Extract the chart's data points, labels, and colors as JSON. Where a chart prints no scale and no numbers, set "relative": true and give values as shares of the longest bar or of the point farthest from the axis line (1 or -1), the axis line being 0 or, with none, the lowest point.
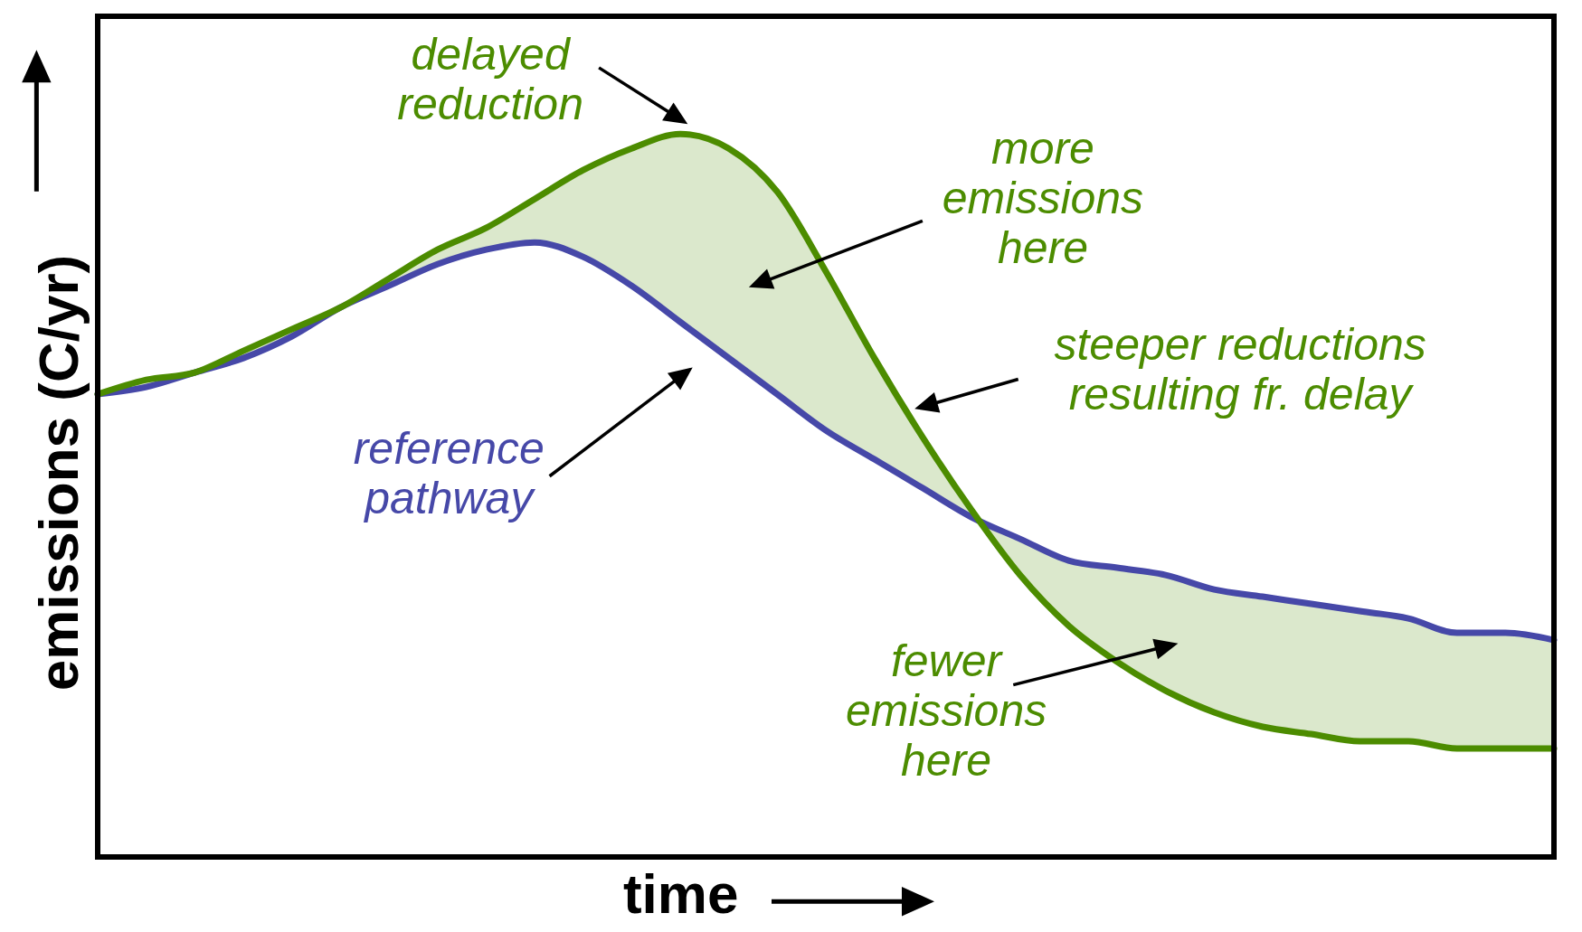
{
  "chart_data": {
    "type": "line",
    "relative": true,
    "xlabel": "time",
    "ylabel": "emissions (C/yr)",
    "grid": false,
    "legend": false,
    "marker": "none",
    "line_style": "solid",
    "categories": [
      null,
      null,
      null,
      null,
      null,
      null,
      null,
      null,
      null,
      null,
      null,
      null,
      null,
      null,
      null,
      null,
      null,
      null,
      null,
      null,
      null,
      null,
      null,
      null,
      null,
      null,
      null,
      null,
      null,
      null,
      null
    ],
    "series": [
      {
        "color": "#4648a8",
        "values": [
          0.64,
          0.65,
          0.67,
          0.69,
          0.72,
          0.76,
          0.79,
          0.82,
          0.84,
          0.85,
          0.83,
          0.79,
          0.74,
          0.69,
          0.64,
          0.59,
          0.55,
          0.51,
          0.47,
          0.44,
          0.41,
          0.4,
          0.39,
          0.37,
          0.36,
          0.35,
          0.34,
          0.33,
          0.31,
          0.31,
          0.3
        ]
      },
      {
        "color": "#4c8c00",
        "values": [
          0.64,
          0.66,
          0.67,
          0.7,
          0.73,
          0.76,
          0.8,
          0.84,
          0.87,
          0.91,
          0.95,
          0.98,
          1.0,
          0.98,
          0.92,
          0.81,
          0.69,
          0.58,
          0.48,
          0.39,
          0.32,
          0.27,
          0.23,
          0.2,
          0.18,
          0.17,
          0.16,
          0.16,
          0.15,
          0.15,
          0.15
        ],
        "lower": [
          0.64,
          0.65,
          0.67,
          0.69,
          0.72,
          0.76,
          0.79,
          0.82,
          0.84,
          0.85,
          0.83,
          0.79,
          0.74,
          0.69,
          0.64,
          0.59,
          0.55,
          0.51,
          0.47,
          0.39,
          0.32,
          0.27,
          0.23,
          0.2,
          0.18,
          0.17,
          0.16,
          0.16,
          0.15,
          0.15,
          0.15
        ],
        "upper": [
          0.64,
          0.66,
          0.67,
          0.7,
          0.73,
          0.76,
          0.8,
          0.84,
          0.87,
          0.91,
          0.95,
          0.98,
          1.0,
          0.98,
          0.92,
          0.81,
          0.69,
          0.58,
          0.48,
          0.44,
          0.41,
          0.4,
          0.39,
          0.37,
          0.36,
          0.35,
          0.34,
          0.33,
          0.31,
          0.31,
          0.3
        ]
      }
    ],
    "annotations": [
      "delayed\nreduction",
      "more\nemissions\nhere",
      "steeper reductions\nresulting fr. delay",
      "reference\npathway",
      "fewer\nemissions\nhere"
    ]
  }
}
